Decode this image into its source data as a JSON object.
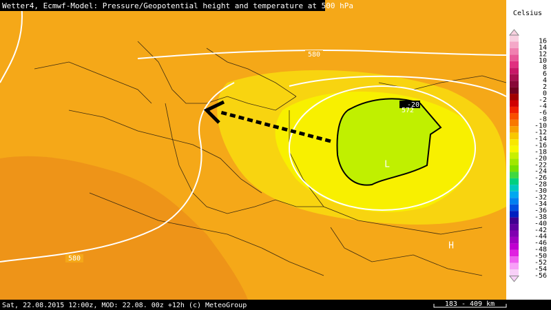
{
  "header": {
    "title": "Wetter4, Ecmwf-Model: Pressure/Geopotential height and temperature at 500 hPa"
  },
  "map_labels": {
    "isoline_north": "580",
    "isoline_southwest": "580",
    "isoline_low": "572",
    "temperature": "-20",
    "low": "L",
    "high": "H"
  },
  "legend": {
    "title": "Celsius",
    "entries": [
      {
        "label": "16",
        "color": "#f8d0e0"
      },
      {
        "label": "14",
        "color": "#f4a8c8"
      },
      {
        "label": "12",
        "color": "#f080b0"
      },
      {
        "label": "10",
        "color": "#e85898"
      },
      {
        "label": "8",
        "color": "#e03080"
      },
      {
        "label": "6",
        "color": "#c81868"
      },
      {
        "label": "4",
        "color": "#a81050"
      },
      {
        "label": "2",
        "color": "#880838"
      },
      {
        "label": "0",
        "color": "#700020"
      },
      {
        "label": "-2",
        "color": "#a00000"
      },
      {
        "label": "-4",
        "color": "#d00000"
      },
      {
        "label": "-6",
        "color": "#f02000"
      },
      {
        "label": "-8",
        "color": "#f85000"
      },
      {
        "label": "-10",
        "color": "#f87800"
      },
      {
        "label": "-12",
        "color": "#f8a000"
      },
      {
        "label": "-14",
        "color": "#f8c800"
      },
      {
        "label": "-16",
        "color": "#f8e800"
      },
      {
        "label": "-18",
        "color": "#f8f800"
      },
      {
        "label": "-20",
        "color": "#c8f000"
      },
      {
        "label": "-22",
        "color": "#a0e800"
      },
      {
        "label": "-24",
        "color": "#78e000"
      },
      {
        "label": "-26",
        "color": "#40d840"
      },
      {
        "label": "-28",
        "color": "#00d080"
      },
      {
        "label": "-30",
        "color": "#00c8c0"
      },
      {
        "label": "-32",
        "color": "#00a8f0"
      },
      {
        "label": "-34",
        "color": "#0080f0"
      },
      {
        "label": "-36",
        "color": "#0050e0"
      },
      {
        "label": "-38",
        "color": "#0020c0"
      },
      {
        "label": "-40",
        "color": "#400090"
      },
      {
        "label": "-42",
        "color": "#6000a0"
      },
      {
        "label": "-44",
        "color": "#8000b0"
      },
      {
        "label": "-46",
        "color": "#a000c0"
      },
      {
        "label": "-48",
        "color": "#c000d0"
      },
      {
        "label": "-50",
        "color": "#e020e0"
      },
      {
        "label": "-52",
        "color": "#f060f0"
      },
      {
        "label": "-54",
        "color": "#f8a0f8"
      },
      {
        "label": "-56",
        "color": "#f8d0f8"
      }
    ]
  },
  "footer": {
    "info": "Sat, 22.08.2015 12:00z, MOD: 22.08. 00z +12h (c) MeteoGroup",
    "scale": "183 - 409 km"
  }
}
